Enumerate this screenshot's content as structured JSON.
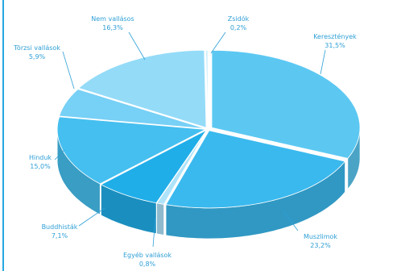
{
  "chart_data": {
    "type": "pie",
    "title": "",
    "categories": [
      "Keresztények",
      "Muszlimok",
      "Egyéb vallások",
      "Buddhisták",
      "Hinduk",
      "Törzsi vallások",
      "Nem vallásos",
      "Zsidók"
    ],
    "values": [
      31.5,
      23.2,
      0.8,
      7.1,
      15.0,
      5.9,
      16.3,
      0.2
    ],
    "value_labels": [
      "31,5%",
      "23,2%",
      "0,8%",
      "7,1%",
      "15,0%",
      "5,9%",
      "16,3%",
      "0,2%"
    ],
    "colors": [
      "#5cc8f2",
      "#3ab9ee",
      "#aee3fa",
      "#20aee9",
      "#45bfef",
      "#77d0f5",
      "#94dbf8",
      "#c2eafb"
    ],
    "legend": "none",
    "style": "3d-exploded-pie"
  }
}
